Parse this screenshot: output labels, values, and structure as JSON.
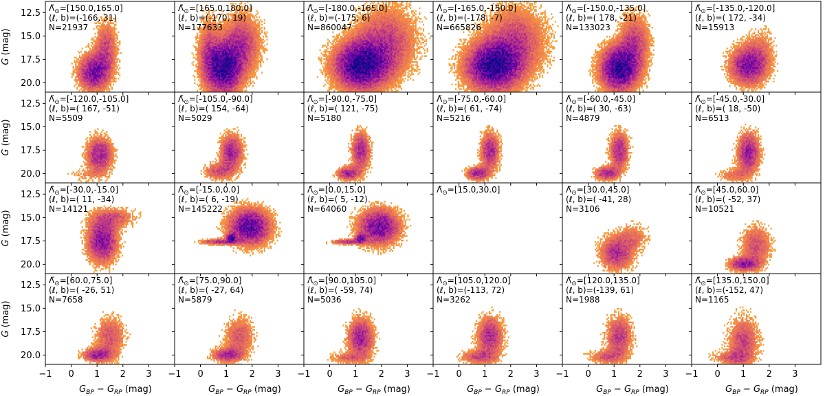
{
  "figure": {
    "ylabel_main": "G",
    "ylabel_unit": " (mag)",
    "xlabel_main": "G",
    "xlabel_sub1": "BP",
    "xlabel_mid": " − G",
    "xlabel_sub2": "RP",
    "xlabel_unit": " (mag)",
    "x_tick_labels": [
      "−1",
      "0",
      "1",
      "2",
      "3"
    ],
    "y_tick_labels": [
      "12.5",
      "15.0",
      "17.5",
      "20.0"
    ],
    "lambda_symbol": "Λ̃",
    "lambda_sub": "⊙",
    "lb_prefix": "(ℓ, b)=",
    "n_prefix": "N="
  },
  "chart_data": {
    "type": "heatmap",
    "xlim": [
      -1,
      4
    ],
    "ylim": [
      21,
      11.3
    ],
    "x_ticks": [
      -1,
      0,
      1,
      2,
      3
    ],
    "y_ticks": [
      12.5,
      15.0,
      17.5,
      20.0
    ],
    "grid": false,
    "colormap": [
      "#fde725",
      "#fca636",
      "#f89540",
      "#e16462",
      "#b12a90",
      "#6a00a8",
      "#0d0887"
    ],
    "panels": [
      {
        "lambda": "=[150.0,165.0]",
        "lb": "(-166,  31)",
        "N": "N=21937",
        "n": 21937,
        "features": [
          {
            "x": 0.85,
            "y": 18.9,
            "sx": 0.4,
            "sy": 1.3,
            "w": 0.7
          },
          {
            "x": 1.35,
            "y": 16.3,
            "sx": 0.3,
            "sy": 2.0,
            "w": 0.4
          }
        ]
      },
      {
        "lambda": "=[165.0,180.0]",
        "lb": "(-170,  19)",
        "N": "N=177633",
        "n": 177633,
        "features": [
          {
            "x": 0.9,
            "y": 18.5,
            "sx": 0.45,
            "sy": 1.8,
            "w": 0.6
          },
          {
            "x": 1.6,
            "y": 15.8,
            "sx": 0.5,
            "sy": 2.2,
            "w": 0.3
          },
          {
            "x": 0.3,
            "y": 16.5,
            "sx": 0.3,
            "sy": 2.5,
            "w": 0.2
          }
        ]
      },
      {
        "lambda": "=[-180.0,-165.0]",
        "lb": "(-175,   6)",
        "N": "N=860047",
        "n": 860047,
        "features": [
          {
            "x": 1.2,
            "y": 18.2,
            "sx": 0.7,
            "sy": 1.7,
            "w": 0.7
          },
          {
            "x": 2.2,
            "y": 15.5,
            "sx": 0.8,
            "sy": 2.5,
            "w": 0.3
          }
        ]
      },
      {
        "lambda": "=[-165.0,-150.0]",
        "lb": "(-178,  -7)",
        "N": "N=665826",
        "n": 665826,
        "features": [
          {
            "x": 1.3,
            "y": 18.3,
            "sx": 0.7,
            "sy": 1.7,
            "w": 0.7
          },
          {
            "x": 2.2,
            "y": 15.5,
            "sx": 0.8,
            "sy": 2.5,
            "w": 0.3
          }
        ]
      },
      {
        "lambda": "=[-150.0,-135.0]",
        "lb": "( 178, -21)",
        "N": "N=133023",
        "n": 133023,
        "features": [
          {
            "x": 1.2,
            "y": 18.5,
            "sx": 0.5,
            "sy": 1.6,
            "w": 0.7
          },
          {
            "x": 1.8,
            "y": 15.5,
            "sx": 0.4,
            "sy": 2.0,
            "w": 0.3
          }
        ]
      },
      {
        "lambda": "=[-135.0,-120.0]",
        "lb": "( 172, -34)",
        "N": "N=15913",
        "n": 15913,
        "features": [
          {
            "x": 1.2,
            "y": 18.2,
            "sx": 0.5,
            "sy": 1.4,
            "w": 0.8
          },
          {
            "x": 1.7,
            "y": 16.0,
            "sx": 0.4,
            "sy": 1.5,
            "w": 0.2
          }
        ]
      },
      {
        "lambda": "=[-120.0,-105.0]",
        "lb": "( 167, -51)",
        "N": "N=5509",
        "n": 5509,
        "features": [
          {
            "x": 1.1,
            "y": 18.0,
            "sx": 0.35,
            "sy": 1.3,
            "w": 0.8
          },
          {
            "x": 0.5,
            "y": 20.2,
            "sx": 0.5,
            "sy": 0.5,
            "w": 0.2
          }
        ]
      },
      {
        "lambda": "=[-105.0,-90.0]",
        "lb": "( 154, -64)",
        "N": "N=5029",
        "n": 5029,
        "features": [
          {
            "x": 1.2,
            "y": 17.7,
            "sx": 0.3,
            "sy": 1.3,
            "w": 0.6
          },
          {
            "x": 0.7,
            "y": 19.8,
            "sx": 0.4,
            "sy": 0.6,
            "w": 0.4
          }
        ]
      },
      {
        "lambda": "=[-90.0,-75.0]",
        "lb": "( 121, -75)",
        "N": "N=5180",
        "n": 5180,
        "features": [
          {
            "x": 1.2,
            "y": 17.6,
            "sx": 0.25,
            "sy": 1.4,
            "w": 0.5
          },
          {
            "x": 0.7,
            "y": 20.0,
            "sx": 0.3,
            "sy": 0.5,
            "w": 0.5
          }
        ]
      },
      {
        "lambda": "=[-75.0,-60.0]",
        "lb": "(  61, -74)",
        "N": "N=5216",
        "n": 5216,
        "features": [
          {
            "x": 1.2,
            "y": 17.6,
            "sx": 0.25,
            "sy": 1.4,
            "w": 0.5
          },
          {
            "x": 0.7,
            "y": 20.0,
            "sx": 0.3,
            "sy": 0.5,
            "w": 0.5
          }
        ]
      },
      {
        "lambda": "=[-60.0,-45.0]",
        "lb": "(  30, -63)",
        "N": "N=4879",
        "n": 4879,
        "features": [
          {
            "x": 1.2,
            "y": 17.6,
            "sx": 0.25,
            "sy": 1.4,
            "w": 0.5
          },
          {
            "x": 0.7,
            "y": 20.0,
            "sx": 0.3,
            "sy": 0.5,
            "w": 0.5
          }
        ]
      },
      {
        "lambda": "=[-45.0,-30.0]",
        "lb": "(  18, -50)",
        "N": "N=6513",
        "n": 6513,
        "features": [
          {
            "x": 1.2,
            "y": 17.8,
            "sx": 0.3,
            "sy": 1.5,
            "w": 0.7
          },
          {
            "x": 0.6,
            "y": 20.2,
            "sx": 0.4,
            "sy": 0.5,
            "w": 0.3
          }
        ]
      },
      {
        "lambda": "=[-30.0,-15.0]",
        "lb": "(  11, -34)",
        "N": "N=14121",
        "n": 14121,
        "features": [
          {
            "x": 1.2,
            "y": 17.5,
            "sx": 0.4,
            "sy": 1.6,
            "w": 0.7
          },
          {
            "x": 1.7,
            "y": 15.0,
            "sx": 0.6,
            "sy": 0.7,
            "w": 0.3
          }
        ]
      },
      {
        "lambda": "=[-15.0,0.0]",
        "lb": "(   6, -19)",
        "N": "N=145222",
        "n": 145222,
        "features": [
          {
            "x": 1.2,
            "y": 17.2,
            "sx": 0.12,
            "sy": 0.3,
            "w": 0.35
          },
          {
            "x": 0.7,
            "y": 17.6,
            "sx": 0.45,
            "sy": 0.2,
            "w": 0.25
          },
          {
            "x": 1.9,
            "y": 16.0,
            "sx": 0.55,
            "sy": 1.3,
            "w": 0.4
          }
        ]
      },
      {
        "lambda": "=[0.0,15.0]",
        "lb": "(   5, -12)",
        "N": "N=64060",
        "n": 64060,
        "features": [
          {
            "x": 1.2,
            "y": 17.2,
            "sx": 0.12,
            "sy": 0.3,
            "w": 0.35
          },
          {
            "x": 0.7,
            "y": 17.6,
            "sx": 0.45,
            "sy": 0.2,
            "w": 0.25
          },
          {
            "x": 1.9,
            "y": 16.0,
            "sx": 0.55,
            "sy": 1.3,
            "w": 0.4
          }
        ]
      },
      {
        "lambda": "=[15.0,30.0]",
        "lb": "",
        "N": "",
        "n": 0,
        "features": []
      },
      {
        "lambda": "=[30.0,45.0]",
        "lb": "( -41,  28)",
        "N": "N=3106",
        "n": 3106,
        "features": [
          {
            "x": 1.1,
            "y": 18.8,
            "sx": 0.45,
            "sy": 1.3,
            "w": 0.7
          },
          {
            "x": 1.8,
            "y": 17.0,
            "sx": 0.4,
            "sy": 1.0,
            "w": 0.3
          }
        ]
      },
      {
        "lambda": "=[45.0,60.0]",
        "lb": "( -52,  37)",
        "N": "N=10521",
        "n": 10521,
        "features": [
          {
            "x": 1.0,
            "y": 20.0,
            "sx": 0.4,
            "sy": 0.5,
            "w": 0.6
          },
          {
            "x": 1.5,
            "y": 18.0,
            "sx": 0.4,
            "sy": 1.5,
            "w": 0.4
          }
        ]
      },
      {
        "lambda": "=[60.0,75.0]",
        "lb": "( -26,  51)",
        "N": "N=7658",
        "n": 7658,
        "features": [
          {
            "x": 1.0,
            "y": 20.0,
            "sx": 0.4,
            "sy": 0.5,
            "w": 0.6
          },
          {
            "x": 1.5,
            "y": 18.0,
            "sx": 0.4,
            "sy": 1.5,
            "w": 0.4
          }
        ]
      },
      {
        "lambda": "=[75.0,90.0]",
        "lb": "( -27,  64)",
        "N": "N=5879",
        "n": 5879,
        "features": [
          {
            "x": 1.0,
            "y": 20.0,
            "sx": 0.4,
            "sy": 0.5,
            "w": 0.6
          },
          {
            "x": 1.5,
            "y": 18.0,
            "sx": 0.4,
            "sy": 1.5,
            "w": 0.4
          }
        ]
      },
      {
        "lambda": "=[90.0,105.0]",
        "lb": "( -59,  74)",
        "N": "N=5036",
        "n": 5036,
        "features": [
          {
            "x": 1.2,
            "y": 18.2,
            "sx": 0.35,
            "sy": 1.5,
            "w": 0.7
          },
          {
            "x": 0.6,
            "y": 20.3,
            "sx": 0.5,
            "sy": 0.4,
            "w": 0.3
          }
        ]
      },
      {
        "lambda": "=[105.0,120.0]",
        "lb": "(-113,  72)",
        "N": "N=3262",
        "n": 3262,
        "features": [
          {
            "x": 1.2,
            "y": 18.0,
            "sx": 0.35,
            "sy": 1.5,
            "w": 0.6
          },
          {
            "x": 0.7,
            "y": 20.2,
            "sx": 0.5,
            "sy": 0.5,
            "w": 0.4
          }
        ]
      },
      {
        "lambda": "=[120.0,135.0]",
        "lb": "(-139,  61)",
        "N": "N=1988",
        "n": 1988,
        "features": [
          {
            "x": 1.2,
            "y": 18.0,
            "sx": 0.35,
            "sy": 1.5,
            "w": 0.6
          },
          {
            "x": 0.7,
            "y": 20.2,
            "sx": 0.5,
            "sy": 0.5,
            "w": 0.4
          }
        ]
      },
      {
        "lambda": "=[135.0,150.0]",
        "lb": "(-152,  47)",
        "N": "N=1165",
        "n": 1165,
        "features": [
          {
            "x": 1.0,
            "y": 18.5,
            "sx": 0.4,
            "sy": 1.8,
            "w": 0.6
          },
          {
            "x": 0.5,
            "y": 20.3,
            "sx": 0.5,
            "sy": 0.5,
            "w": 0.4
          }
        ]
      }
    ]
  }
}
